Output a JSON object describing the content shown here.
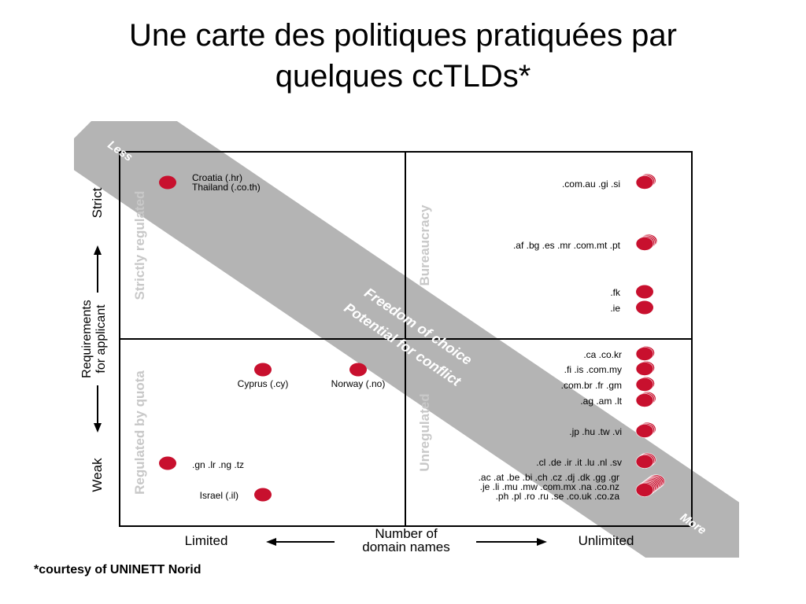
{
  "slide": {
    "title_line1": "Une carte des politiques pratiquées par",
    "title_line2": "quelques ccTLDs*",
    "footnote": "*courtesy of UNINETT Norid"
  },
  "diagram": {
    "band": {
      "start_label": "Less",
      "end_label": "More",
      "text_line1": "Freedom of choice",
      "text_line2": "Potential for conflict"
    },
    "y_axis": {
      "title_line1": "Requirements",
      "title_line2": "for applicant",
      "top_label": "Strict",
      "bottom_label": "Weak"
    },
    "x_axis": {
      "title_line1": "Number of",
      "title_line2": "domain names",
      "left_label": "Limited",
      "right_label": "Unlimited"
    },
    "quadrants": {
      "top_left": "Strictly regulated",
      "top_right": "Bureaucracy",
      "bottom_left": "Regulated by quota",
      "bottom_right": "Unregulated"
    },
    "groups": [
      {
        "text": "Croatia (.hr)\nThailand (.co.th)",
        "quadrant": "top_left"
      },
      {
        "text": ".com.au .gi .si",
        "quadrant": "top_right"
      },
      {
        "text": ".af .bg .es .mr .com.mt .pt",
        "quadrant": "top_right"
      },
      {
        "text": ".fk",
        "quadrant": "top_right"
      },
      {
        "text": ".ie",
        "quadrant": "top_right"
      },
      {
        "text": "Cyprus (.cy)",
        "quadrant": "bottom_left"
      },
      {
        "text": "Norway (.no)",
        "quadrant": "bottom_left"
      },
      {
        "text": ".gn .lr .ng .tz",
        "quadrant": "bottom_left"
      },
      {
        "text": "Israel (.il)",
        "quadrant": "bottom_left"
      },
      {
        "text": ".ca .co.kr",
        "quadrant": "bottom_right"
      },
      {
        "text": ".fi .is .com.my",
        "quadrant": "bottom_right"
      },
      {
        "text": ".com.br .fr .gm",
        "quadrant": "bottom_right"
      },
      {
        "text": ".ag .am .lt",
        "quadrant": "bottom_right"
      },
      {
        "text": ".jp .hu .tw .vi",
        "quadrant": "bottom_right"
      },
      {
        "text": ".cl .de .ir .it .lu .nl .sv",
        "quadrant": "bottom_right"
      },
      {
        "text": ".ac .at .be .bi .ch .cz .dj .dk .gg .gr\n.je .li .mu .mw .com.mx .na .co.nz\n.ph .pl .ro .ru .se .co.uk .co.za",
        "quadrant": "bottom_right"
      }
    ],
    "colors": {
      "dot": "#c8102e",
      "band": "#b4b4b4",
      "quadrant_label": "#c8c8c8",
      "frame": "#000000"
    }
  }
}
